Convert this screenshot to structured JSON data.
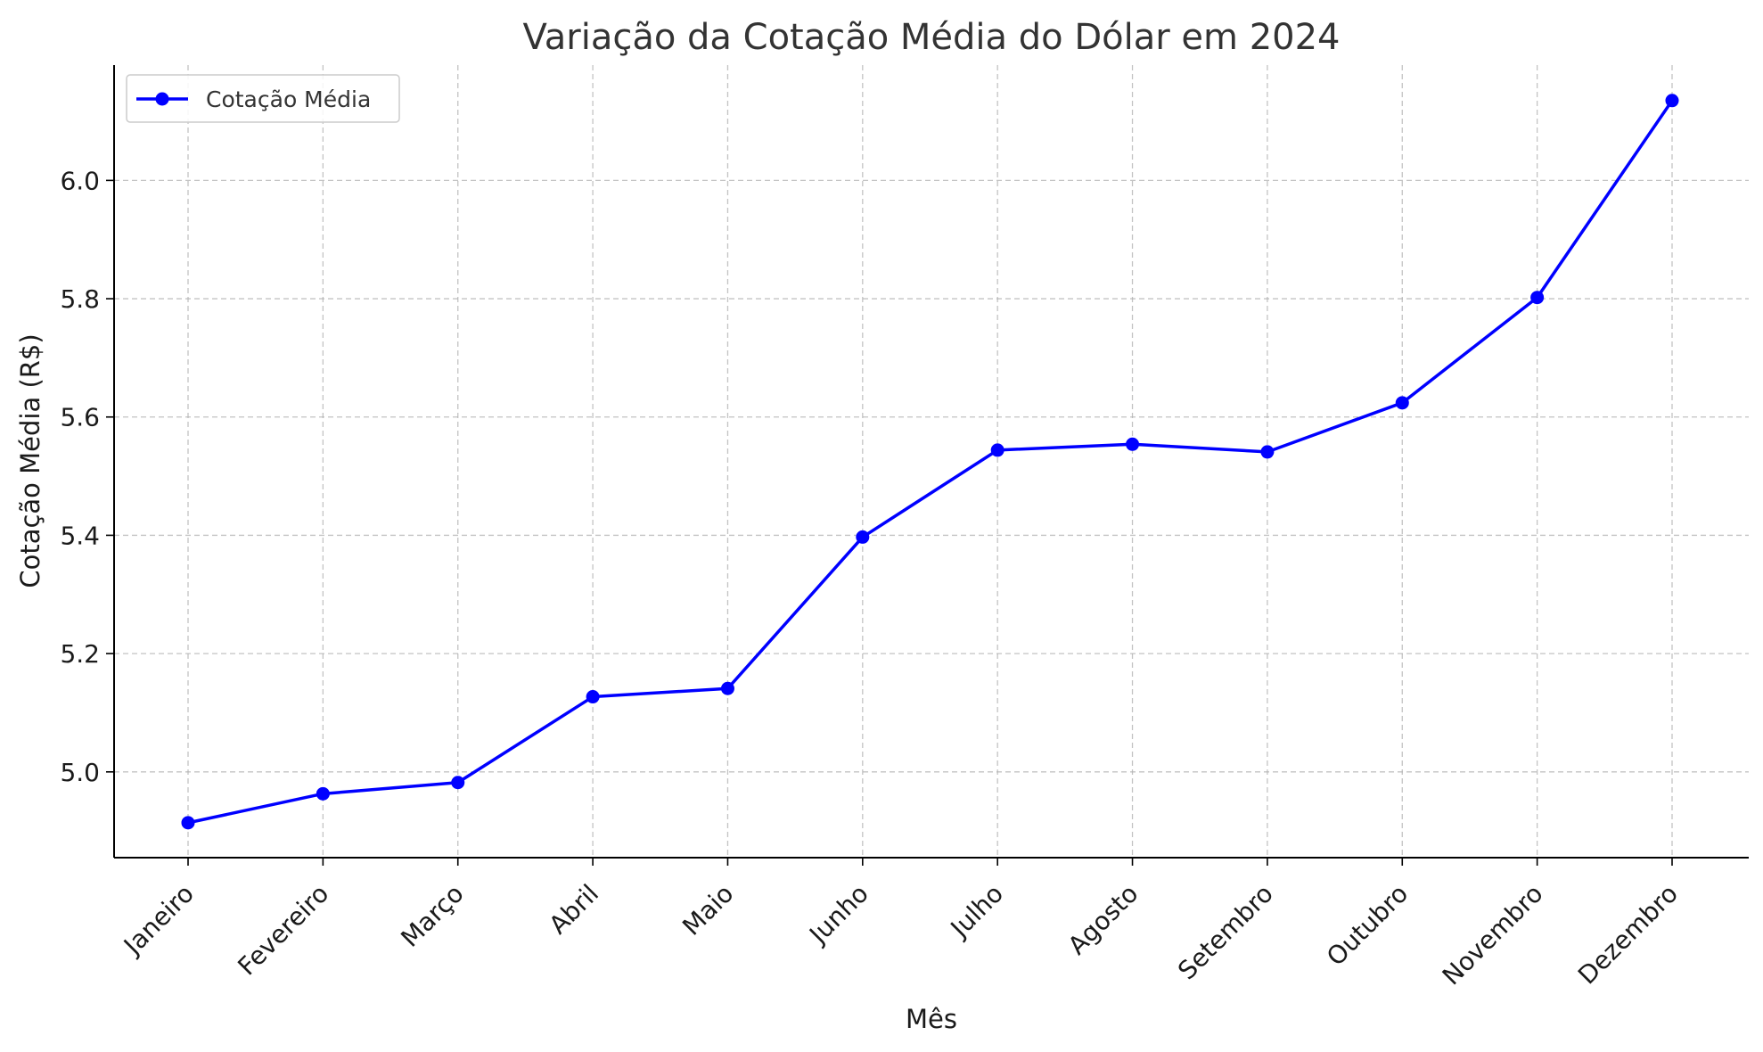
{
  "chart_data": {
    "type": "line",
    "title": "Variação da Cotação Média do Dólar em 2024",
    "xlabel": "Mês",
    "ylabel": "Cotação Média (R$)",
    "categories": [
      "Janeiro",
      "Fevereiro",
      "Março",
      "Abril",
      "Maio",
      "Junho",
      "Julho",
      "Agosto",
      "Setembro",
      "Outubro",
      "Novembro",
      "Dezembro"
    ],
    "series": [
      {
        "name": "Cotação Média",
        "color": "#0000ff",
        "marker": "circle",
        "values": [
          4.914,
          4.963,
          4.982,
          5.127,
          5.141,
          5.397,
          5.544,
          5.554,
          5.541,
          5.624,
          5.802,
          6.135
        ]
      }
    ],
    "ylim": [
      4.855,
      6.195
    ],
    "yticks": [
      "5.0",
      "5.2",
      "5.4",
      "5.6",
      "5.8",
      "6.0"
    ],
    "grid": true,
    "legend_position": "top-left"
  }
}
